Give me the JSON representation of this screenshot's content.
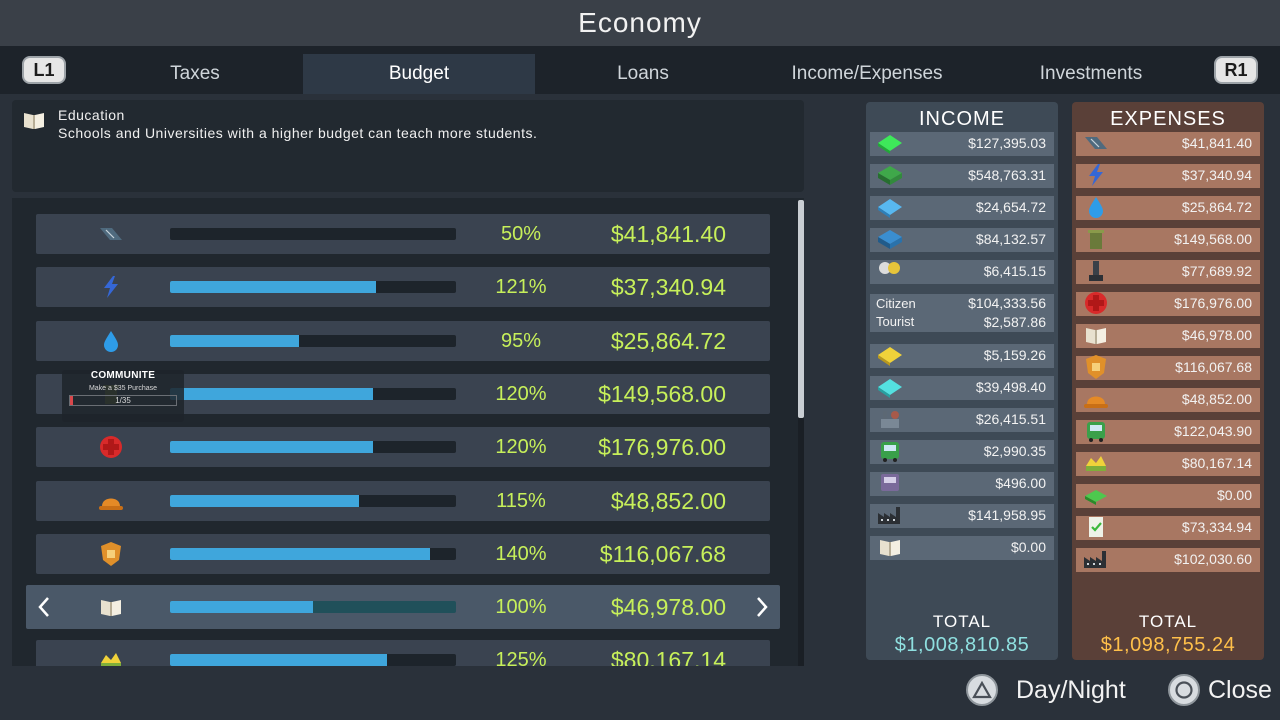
{
  "window": {
    "title": "Economy"
  },
  "tabs": {
    "left_button": "L1",
    "right_button": "R1",
    "items": [
      {
        "label": "Taxes",
        "active": false
      },
      {
        "label": "Budget",
        "active": true
      },
      {
        "label": "Loans",
        "active": false
      },
      {
        "label": "Income/Expenses",
        "active": false
      },
      {
        "label": "Investments",
        "active": false
      }
    ]
  },
  "info": {
    "title": "Education",
    "description": "Schools and Universities with a higher budget can teach more students.",
    "icon": "book-icon"
  },
  "budget_rows": [
    {
      "icon": "road-icon",
      "percent_label": "50%",
      "fill": 0.0,
      "amount": "$41,841.40",
      "selected": false
    },
    {
      "icon": "electricity-icon",
      "percent_label": "121%",
      "fill": 0.72,
      "amount": "$37,340.94",
      "selected": false
    },
    {
      "icon": "water-drop-icon",
      "percent_label": "95%",
      "fill": 0.45,
      "amount": "$25,864.72",
      "selected": false
    },
    {
      "icon": "garbage-icon",
      "percent_label": "120%",
      "fill": 0.71,
      "amount": "$149,568.00",
      "selected": false
    },
    {
      "icon": "healthcare-icon",
      "percent_label": "120%",
      "fill": 0.71,
      "amount": "$176,976.00",
      "selected": false
    },
    {
      "icon": "fire-helmet-icon",
      "percent_label": "115%",
      "fill": 0.66,
      "amount": "$48,852.00",
      "selected": false
    },
    {
      "icon": "police-badge-icon",
      "percent_label": "140%",
      "fill": 0.91,
      "amount": "$116,067.68",
      "selected": false
    },
    {
      "icon": "book-icon",
      "percent_label": "100%",
      "fill": 0.5,
      "amount": "$46,978.00",
      "selected": true
    },
    {
      "icon": "park-icon",
      "percent_label": "125%",
      "fill": 0.76,
      "amount": "$80,167.14",
      "selected": false
    }
  ],
  "overlay": {
    "brand": "COMMUNITE",
    "message": "Make a $35 Purchase",
    "progress": "1/35",
    "progress_fraction": 0.03
  },
  "income": {
    "title": "INCOME",
    "rows": [
      {
        "icon": "residential-low-icon",
        "value": "$127,395.03"
      },
      {
        "icon": "residential-high-icon",
        "value": "$548,763.31"
      },
      {
        "icon": "commercial-low-icon",
        "value": "$24,654.72"
      },
      {
        "icon": "commercial-high-icon",
        "value": "$84,132.57"
      },
      {
        "icon": "leisure-icon",
        "value": "$6,415.15"
      },
      {
        "icon": "tourism-icon",
        "value": "$5,159.26"
      },
      {
        "icon": "office-icon",
        "value": "$39,498.40"
      },
      {
        "icon": "industry-icon",
        "value": "$26,415.51"
      },
      {
        "icon": "bus-icon",
        "value": "$2,990.35"
      },
      {
        "icon": "metro-icon",
        "value": "$496.00"
      },
      {
        "icon": "factory-icon",
        "value": "$141,958.95"
      },
      {
        "icon": "book-icon",
        "value": "$0.00"
      }
    ],
    "citizen_label": "Citizen",
    "citizen_value": "$104,333.56",
    "tourist_label": "Tourist",
    "tourist_value": "$2,587.86",
    "total_label": "TOTAL",
    "total_value": "$1,008,810.85"
  },
  "expenses": {
    "title": "EXPENSES",
    "rows": [
      {
        "icon": "road-icon",
        "value": "$41,841.40"
      },
      {
        "icon": "electricity-icon",
        "value": "$37,340.94"
      },
      {
        "icon": "water-drop-icon",
        "value": "$25,864.72"
      },
      {
        "icon": "garbage-icon",
        "value": "$149,568.00"
      },
      {
        "icon": "monument-icon",
        "value": "$77,689.92"
      },
      {
        "icon": "healthcare-icon",
        "value": "$176,976.00"
      },
      {
        "icon": "book-icon",
        "value": "$46,978.00"
      },
      {
        "icon": "police-badge-icon",
        "value": "$116,067.68"
      },
      {
        "icon": "fire-helmet-icon",
        "value": "$48,852.00"
      },
      {
        "icon": "bus-icon",
        "value": "$122,043.90"
      },
      {
        "icon": "park-icon",
        "value": "$80,167.14"
      },
      {
        "icon": "money-stack-icon",
        "value": "$0.00"
      },
      {
        "icon": "document-check-icon",
        "value": "$73,334.94"
      },
      {
        "icon": "factory-icon",
        "value": "$102,030.60"
      }
    ],
    "total_label": "TOTAL",
    "total_value": "$1,098,755.24"
  },
  "hints": {
    "day_night": "Day/Night",
    "close": "Close"
  },
  "colors": {
    "accent_green": "#c7f05a",
    "slider_blue": "#3fa6dc",
    "income_total": "#8fe0e0",
    "expense_total": "#ffc04a"
  }
}
